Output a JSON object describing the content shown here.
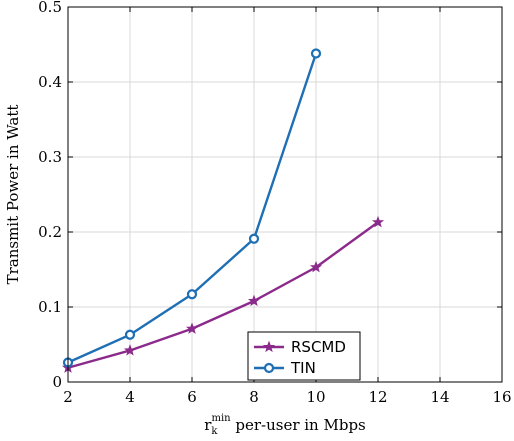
{
  "chart_data": {
    "type": "line",
    "title": "",
    "xlabel": {
      "main": "r",
      "sub": "k",
      "sup": "min",
      "rest": " per-user in Mbps"
    },
    "ylabel": "Transmit Power in Watt",
    "xlim": [
      2,
      16
    ],
    "ylim": [
      0,
      0.5
    ],
    "xticks": [
      2,
      4,
      6,
      8,
      10,
      12,
      14,
      16
    ],
    "yticks": [
      0,
      0.1,
      0.2,
      0.3,
      0.4,
      0.5
    ],
    "ytick_labels": [
      "0",
      "0.1",
      "0.2",
      "0.3",
      "0.4",
      "0.5"
    ],
    "grid": true,
    "legend_position": "bottom-center",
    "series": [
      {
        "name": "RSCMD",
        "color": "#8B2A8B",
        "marker": "star",
        "x": [
          2,
          4,
          6,
          8,
          10,
          12
        ],
        "values": [
          0.019,
          0.042,
          0.071,
          0.108,
          0.153,
          0.213
        ]
      },
      {
        "name": "TIN",
        "color": "#1F6FB5",
        "marker": "circle",
        "x": [
          2,
          4,
          6,
          8,
          10
        ],
        "values": [
          0.026,
          0.063,
          0.117,
          0.191,
          0.438
        ]
      }
    ]
  }
}
